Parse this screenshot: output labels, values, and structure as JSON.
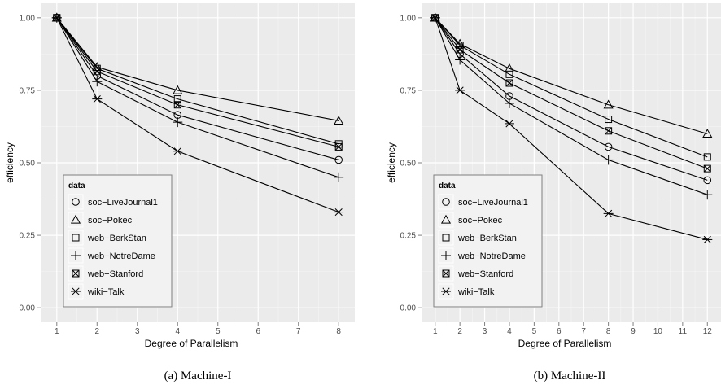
{
  "chart_data": [
    {
      "type": "line",
      "caption": "(a) Machine-I",
      "xlabel": "Degree of Parallelism",
      "ylabel": "efficiency",
      "xlim": [
        0.6,
        8.4
      ],
      "ylim": [
        -0.05,
        1.05
      ],
      "xticks": [
        1,
        2,
        3,
        4,
        5,
        6,
        7,
        8
      ],
      "yticks": [
        0.0,
        0.25,
        0.5,
        0.75,
        1.0
      ],
      "ytick_labels": [
        "0.00",
        "0.25",
        "0.50",
        "0.75",
        "1.00"
      ],
      "grid": true,
      "legend_title": "data",
      "legend_position": "bottom-left",
      "x": [
        1,
        2,
        4,
        8
      ],
      "series": [
        {
          "name": "soc−LiveJournal1",
          "marker": "circle",
          "values": [
            1.0,
            0.8,
            0.665,
            0.51
          ]
        },
        {
          "name": "soc−Pokec",
          "marker": "triangle",
          "values": [
            1.0,
            0.83,
            0.75,
            0.645
          ]
        },
        {
          "name": "web−BerkStan",
          "marker": "square",
          "values": [
            1.0,
            0.825,
            0.72,
            0.565
          ]
        },
        {
          "name": "web−NotreDame",
          "marker": "plus",
          "values": [
            1.0,
            0.78,
            0.64,
            0.45
          ]
        },
        {
          "name": "web−Stanford",
          "marker": "square-x",
          "values": [
            1.0,
            0.815,
            0.7,
            0.555
          ]
        },
        {
          "name": "wiki−Talk",
          "marker": "asterisk",
          "values": [
            1.0,
            0.72,
            0.54,
            0.33
          ]
        }
      ]
    },
    {
      "type": "line",
      "caption": "(b) Machine-II",
      "xlabel": "Degree of Parallelism",
      "ylabel": "efficiency",
      "xlim": [
        0.45,
        12.55
      ],
      "ylim": [
        -0.05,
        1.05
      ],
      "xticks": [
        1,
        2,
        3,
        4,
        5,
        6,
        7,
        8,
        9,
        10,
        11,
        12
      ],
      "yticks": [
        0.0,
        0.25,
        0.5,
        0.75,
        1.0
      ],
      "ytick_labels": [
        "0.00",
        "0.25",
        "0.50",
        "0.75",
        "1.00"
      ],
      "grid": true,
      "legend_title": "data",
      "legend_position": "bottom-left",
      "x": [
        1,
        2,
        4,
        8,
        12
      ],
      "series": [
        {
          "name": "soc−LiveJournal1",
          "marker": "circle",
          "values": [
            1.0,
            0.875,
            0.73,
            0.555,
            0.44
          ]
        },
        {
          "name": "soc−Pokec",
          "marker": "triangle",
          "values": [
            1.0,
            0.91,
            0.825,
            0.7,
            0.6
          ]
        },
        {
          "name": "web−BerkStan",
          "marker": "square",
          "values": [
            1.0,
            0.905,
            0.805,
            0.65,
            0.52
          ]
        },
        {
          "name": "web−NotreDame",
          "marker": "plus",
          "values": [
            1.0,
            0.855,
            0.705,
            0.51,
            0.39
          ]
        },
        {
          "name": "web−Stanford",
          "marker": "square-x",
          "values": [
            1.0,
            0.89,
            0.775,
            0.61,
            0.48
          ]
        },
        {
          "name": "wiki−Talk",
          "marker": "asterisk",
          "values": [
            1.0,
            0.75,
            0.635,
            0.325,
            0.235
          ]
        }
      ]
    }
  ]
}
